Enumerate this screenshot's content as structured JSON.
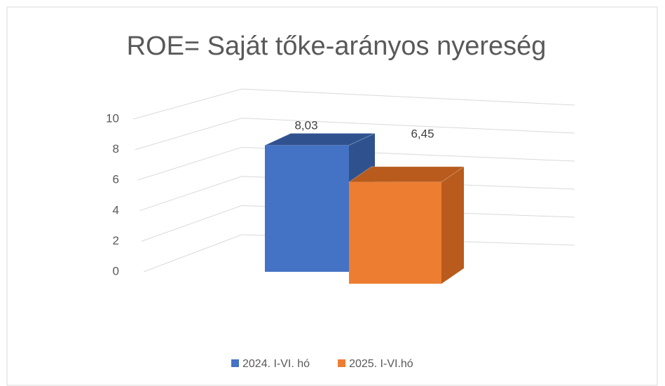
{
  "chart_data": {
    "type": "bar",
    "title": "ROE= Saját tőke-arányos nyereség",
    "categories": [
      null
    ],
    "series": [
      {
        "name": "2024. I-VI. hó",
        "color": "#4472c4",
        "side_color": "#2f528f",
        "values": [
          8.03
        ],
        "value_labels": [
          "8,03"
        ]
      },
      {
        "name": "2025. I-VI.hó",
        "color": "#ed7d31",
        "side_color": "#b85b1c",
        "values": [
          6.45
        ],
        "value_labels": [
          "6,45"
        ]
      }
    ],
    "ylim": [
      0,
      10
    ],
    "yticks": [
      0,
      2,
      4,
      6,
      8,
      10
    ],
    "grid": true
  }
}
